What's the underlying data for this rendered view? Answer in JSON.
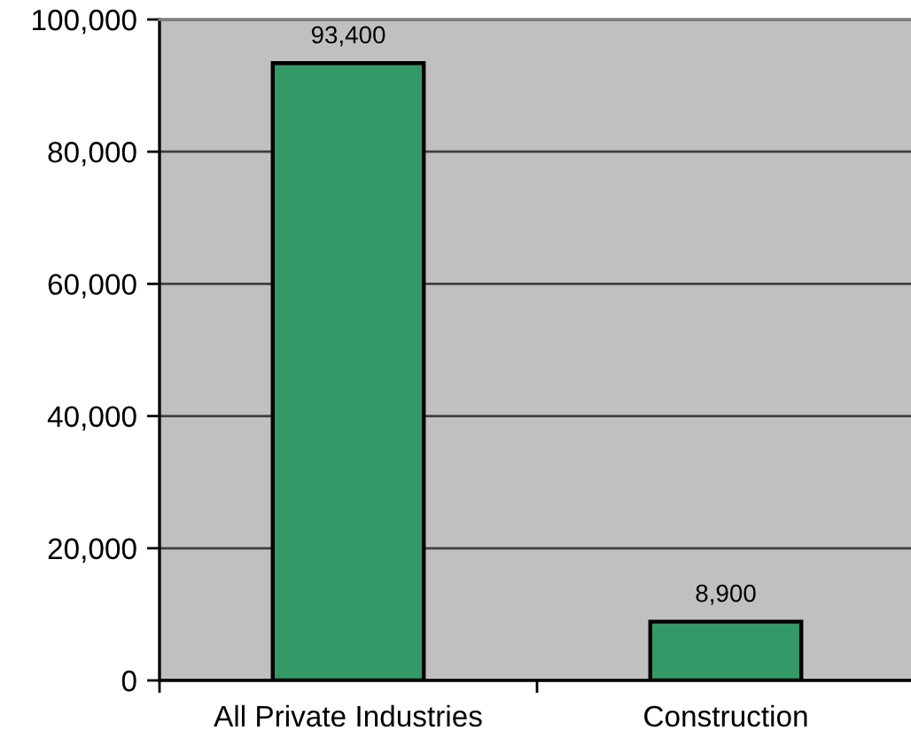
{
  "chart_data": {
    "type": "bar",
    "categories": [
      "All Private Industries",
      "Construction"
    ],
    "values": [
      93400,
      8900
    ],
    "value_labels": [
      "93,400",
      "8,900"
    ],
    "color": "#339966",
    "ylim": [
      0,
      100000
    ],
    "yticks": [
      0,
      {
        "value": 20000,
        "label": "20,000"
      },
      {
        "value": 40000,
        "label": "40,000"
      },
      {
        "value": 60000,
        "label": "60,000"
      },
      {
        "value": 80000,
        "label": "80,000"
      },
      {
        "value": 100000,
        "label": "100,000"
      }
    ],
    "grid": "y",
    "legend": false
  }
}
